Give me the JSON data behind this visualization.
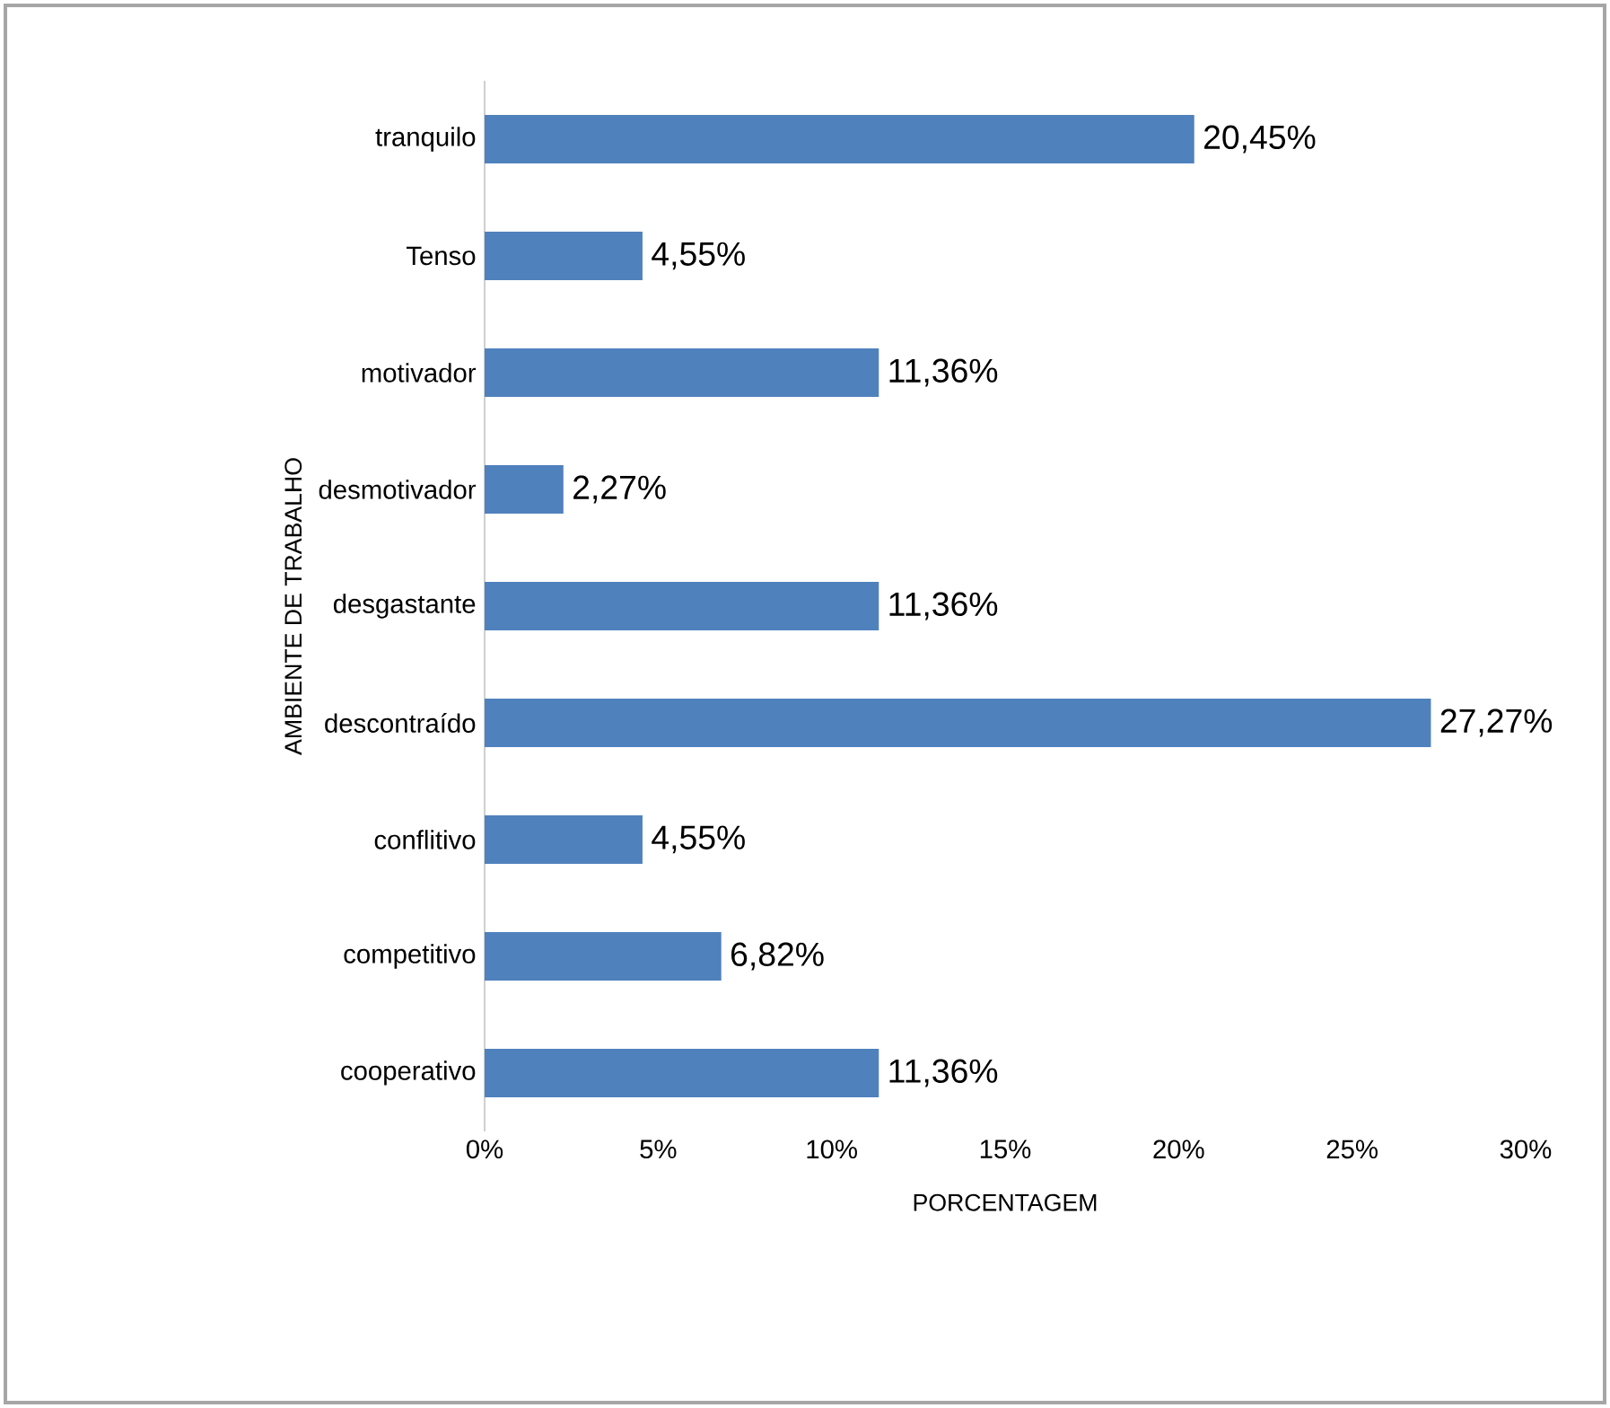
{
  "chart_data": {
    "type": "bar",
    "orientation": "horizontal",
    "xlabel": "PORCENTAGEM",
    "ylabel": "AMBIENTE DE TRABALHO",
    "categories": [
      "tranquilo",
      "Tenso",
      "motivador",
      "desmotivador",
      "desgastante",
      "descontraído",
      "conflitivo",
      "competitivo",
      "cooperativo"
    ],
    "values": [
      20.45,
      4.55,
      11.36,
      2.27,
      11.36,
      27.27,
      4.55,
      6.82,
      11.36
    ],
    "value_labels": [
      "20,45%",
      "4,55%",
      "11,36%",
      "2,27%",
      "11,36%",
      "27,27%",
      "4,55%",
      "6,82%",
      "11,36%"
    ],
    "color": "#4f81bd",
    "xlim": [
      0,
      30
    ],
    "xticks": [
      {
        "value": 0,
        "label": "0%"
      },
      {
        "value": 5,
        "label": "5%"
      },
      {
        "value": 10,
        "label": "10%"
      },
      {
        "value": 15,
        "label": "15%"
      },
      {
        "value": 20,
        "label": "20%"
      },
      {
        "value": 25,
        "label": "25%"
      },
      {
        "value": 30,
        "label": "30%"
      }
    ]
  }
}
